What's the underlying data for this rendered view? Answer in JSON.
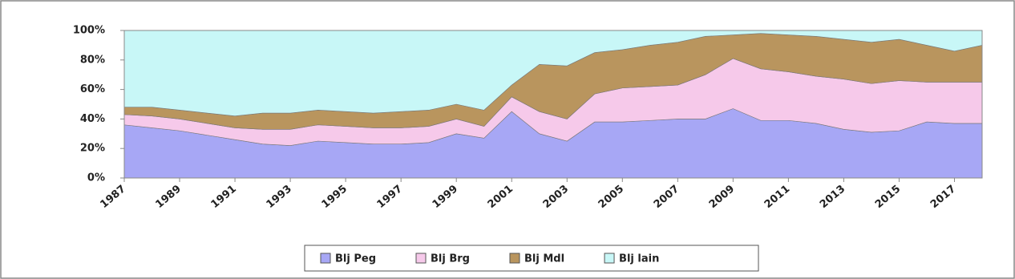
{
  "chart_data": {
    "type": "stacked-area-100",
    "x": [
      1987,
      1988,
      1989,
      1990,
      1991,
      1992,
      1993,
      1994,
      1995,
      1996,
      1997,
      1998,
      1999,
      2000,
      2001,
      2002,
      2003,
      2004,
      2005,
      2006,
      2007,
      2008,
      2009,
      2010,
      2011,
      2012,
      2013,
      2014,
      2015,
      2016,
      2017,
      2018
    ],
    "xlim": [
      1987,
      2018
    ],
    "xticks": [
      1987,
      1989,
      1991,
      1993,
      1995,
      1997,
      1999,
      2001,
      2003,
      2005,
      2007,
      2009,
      2011,
      2013,
      2015,
      2017
    ],
    "ylim": [
      0,
      100
    ],
    "yticks": [
      {
        "value": 0,
        "label": "0%"
      },
      {
        "value": 20,
        "label": "20%"
      },
      {
        "value": 40,
        "label": "40%"
      },
      {
        "value": 60,
        "label": "60%"
      },
      {
        "value": 80,
        "label": "80%"
      },
      {
        "value": 100,
        "label": "100%"
      }
    ],
    "legend": "bottom",
    "series": [
      {
        "name": "Blj Peg",
        "color": "#a7a7f5",
        "values": [
          36,
          34,
          32,
          29,
          26,
          23,
          22,
          25,
          24,
          23,
          23,
          24,
          30,
          27,
          45,
          30,
          25,
          38,
          38,
          39,
          40,
          40,
          47,
          39,
          39,
          37,
          33,
          31,
          32,
          38,
          37,
          37
        ]
      },
      {
        "name": "Blj Brg",
        "color": "#f6c9ea",
        "values": [
          7,
          8,
          8,
          8,
          8,
          10,
          11,
          11,
          11,
          11,
          11,
          11,
          10,
          8,
          10,
          15,
          15,
          19,
          23,
          23,
          23,
          30,
          34,
          35,
          33,
          32,
          34,
          33,
          34,
          27,
          28,
          28
        ]
      },
      {
        "name": "Blj Mdl",
        "color": "#b9955e",
        "values": [
          5,
          6,
          6,
          7,
          8,
          11,
          11,
          10,
          10,
          10,
          11,
          11,
          10,
          11,
          8,
          32,
          36,
          28,
          26,
          28,
          29,
          26,
          16,
          24,
          25,
          27,
          27,
          28,
          28,
          25,
          21,
          25
        ]
      },
      {
        "name": "Blj lain",
        "color": "#c8f7f7",
        "values": [
          52,
          52,
          54,
          56,
          58,
          56,
          56,
          54,
          55,
          56,
          55,
          54,
          50,
          54,
          37,
          23,
          24,
          15,
          13,
          10,
          8,
          4,
          3,
          2,
          3,
          4,
          6,
          8,
          6,
          10,
          14,
          10
        ]
      }
    ]
  }
}
